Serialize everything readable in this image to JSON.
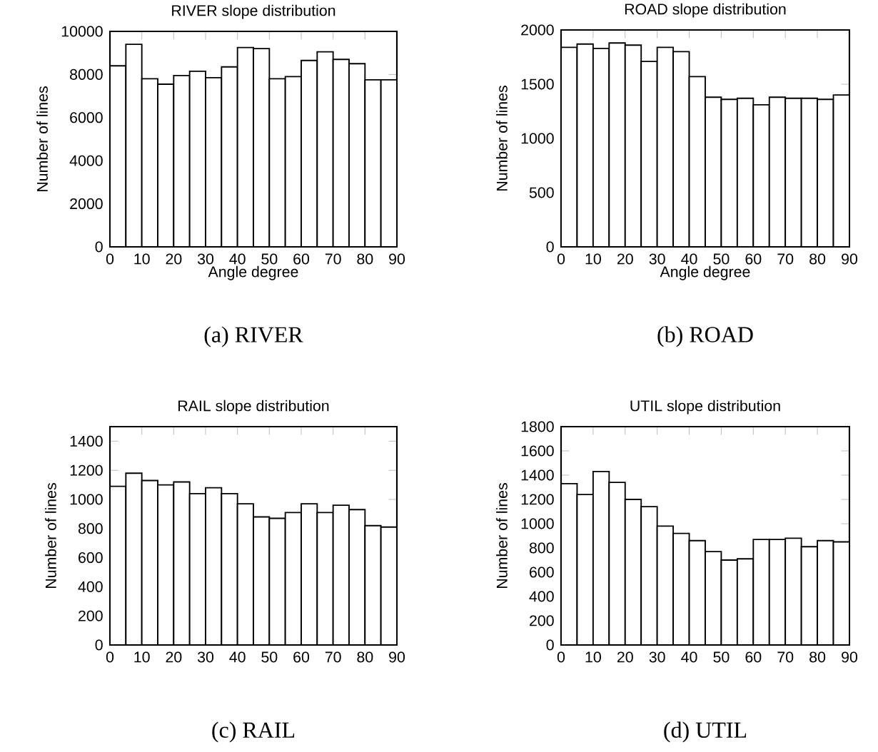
{
  "chart_data": [
    {
      "type": "histogram",
      "title": "RIVER slope distribution",
      "xlabel": "Angle degree",
      "ylabel": "Number of lines",
      "color": "#ffffff",
      "bins": [
        0,
        5,
        10,
        15,
        20,
        25,
        30,
        35,
        40,
        45,
        50,
        55,
        60,
        65,
        70,
        75,
        80,
        85,
        90
      ],
      "values": [
        8400,
        9400,
        7800,
        7550,
        7950,
        8150,
        7850,
        8350,
        9250,
        9200,
        7800,
        7900,
        8650,
        9050,
        8700,
        8500,
        7750,
        7750
      ],
      "xlim": [
        0,
        90
      ],
      "ylim": [
        0,
        10000
      ],
      "xticks": [
        0,
        10,
        20,
        30,
        40,
        50,
        60,
        70,
        80,
        90
      ],
      "yticks": [
        0,
        2000,
        4000,
        6000,
        8000,
        10000
      ],
      "annotations": [
        "(a) RIVER"
      ]
    },
    {
      "type": "histogram",
      "title": "ROAD slope distribution",
      "xlabel": "Angle degree",
      "ylabel": "Number of lines",
      "color": "#ffffff",
      "bins": [
        0,
        5,
        10,
        15,
        20,
        25,
        30,
        35,
        40,
        45,
        50,
        55,
        60,
        65,
        70,
        75,
        80,
        85,
        90
      ],
      "values": [
        1840,
        1870,
        1830,
        1880,
        1860,
        1710,
        1840,
        1800,
        1570,
        1380,
        1360,
        1370,
        1310,
        1380,
        1370,
        1370,
        1360,
        1400
      ],
      "xlim": [
        0,
        90
      ],
      "ylim": [
        0,
        2000
      ],
      "xticks": [
        0,
        10,
        20,
        30,
        40,
        50,
        60,
        70,
        80,
        90
      ],
      "yticks": [
        0,
        500,
        1000,
        1500,
        2000
      ],
      "annotations": [
        "(b) ROAD"
      ]
    },
    {
      "type": "histogram",
      "title": "RAIL slope distribution",
      "ylabel": "Number of lines",
      "color": "#ffffff",
      "bins": [
        0,
        5,
        10,
        15,
        20,
        25,
        30,
        35,
        40,
        45,
        50,
        55,
        60,
        65,
        70,
        75,
        80,
        85,
        90
      ],
      "values": [
        1090,
        1180,
        1130,
        1100,
        1120,
        1040,
        1080,
        1040,
        970,
        880,
        870,
        910,
        970,
        910,
        960,
        930,
        820,
        810
      ],
      "xlim": [
        0,
        90
      ],
      "ylim": [
        0,
        1500
      ],
      "xticks": [
        0,
        10,
        20,
        30,
        40,
        50,
        60,
        70,
        80,
        90
      ],
      "yticks": [
        0,
        200,
        400,
        600,
        800,
        1000,
        1200,
        1400
      ],
      "annotations": [
        "(c) RAIL"
      ]
    },
    {
      "type": "histogram",
      "title": "UTIL slope distribution",
      "ylabel": "Number of lines",
      "color": "#ffffff",
      "bins": [
        0,
        5,
        10,
        15,
        20,
        25,
        30,
        35,
        40,
        45,
        50,
        55,
        60,
        65,
        70,
        75,
        80,
        85,
        90
      ],
      "values": [
        1330,
        1240,
        1430,
        1340,
        1200,
        1140,
        980,
        920,
        860,
        770,
        700,
        710,
        870,
        870,
        880,
        810,
        860,
        850
      ],
      "xlim": [
        0,
        90
      ],
      "ylim": [
        0,
        1800
      ],
      "xticks": [
        0,
        10,
        20,
        30,
        40,
        50,
        60,
        70,
        80,
        90
      ],
      "yticks": [
        0,
        200,
        400,
        600,
        800,
        1000,
        1200,
        1400,
        1600,
        1800
      ],
      "annotations": [
        "(d) UTIL"
      ]
    }
  ]
}
